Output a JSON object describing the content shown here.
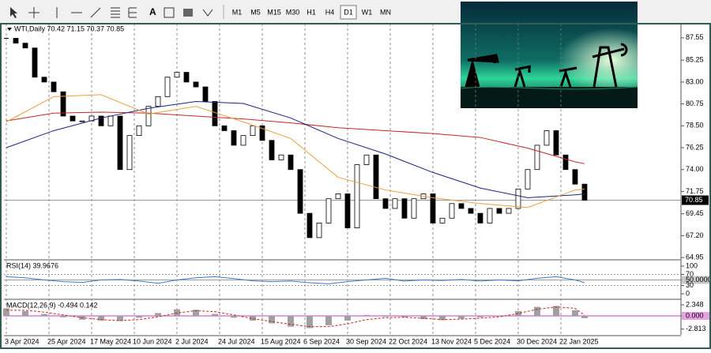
{
  "toolbar": {
    "timeframes": [
      "M1",
      "M5",
      "M15",
      "M30",
      "H1",
      "H4",
      "D1",
      "W1",
      "MN"
    ],
    "active": "D1"
  },
  "chart_data": [
    {
      "type": "candlestick",
      "title": "WTI,Daily 70.42 71.15 70.37 70.85",
      "values": [
        87.5,
        87,
        86.5,
        83.5,
        83,
        82,
        79.5,
        79,
        79,
        79.5,
        78.5,
        79.5,
        74,
        77.5,
        78.5,
        80.5,
        81.5,
        83.5,
        84,
        83,
        82.5,
        81,
        78.5,
        78,
        76.5,
        77.5,
        78.5,
        77,
        75,
        75.5,
        74,
        69.5,
        67,
        68.5,
        71,
        71.5,
        68,
        74.5,
        75.5,
        71,
        70,
        71,
        69,
        71,
        71.5,
        68.5,
        69,
        70.5,
        70,
        69.5,
        68.5,
        70,
        69.5,
        70,
        72,
        74,
        76.5,
        78,
        75.5,
        74,
        72.5,
        70.85
      ],
      "up_color": "#ffffff",
      "down_color": "#000000",
      "series": [
        {
          "color": "#c62828",
          "x": [
            0,
            5,
            10,
            15,
            20,
            25,
            30,
            35,
            40,
            45,
            50,
            55,
            60,
            61
          ],
          "values": [
            79,
            79.8,
            79.9,
            79.8,
            79.5,
            79.2,
            78.8,
            78.3,
            78,
            77.7,
            77.3,
            76.2,
            74.8,
            74.6
          ]
        },
        {
          "color": "#1a237e",
          "x": [
            0,
            5,
            10,
            15,
            20,
            25,
            30,
            35,
            40,
            45,
            50,
            55,
            60,
            61
          ],
          "values": [
            76.25,
            78,
            79.3,
            80.3,
            81,
            80.8,
            79.3,
            77.2,
            75.6,
            73.7,
            72.1,
            71.1,
            71.4,
            71.5
          ]
        },
        {
          "color": "#e8a040",
          "x": [
            0,
            5,
            10,
            15,
            20,
            25,
            30,
            35,
            40,
            45,
            50,
            55,
            60,
            61
          ],
          "values": [
            78.9,
            81.5,
            81.7,
            79.7,
            80.5,
            78.9,
            77.2,
            73.2,
            71.9,
            71.1,
            70.5,
            70.1,
            71.9,
            72
          ]
        }
      ],
      "xlim": [
        -0.25,
        71.17
      ],
      "xticks": [
        {
          "value": 0,
          "label": "3 Apr 2024"
        },
        {
          "value": 4.5,
          "label": "25 Apr 2024"
        },
        {
          "value": 9,
          "label": "17 May 2024"
        },
        {
          "value": 13.5,
          "label": "10 Jun 2024"
        },
        {
          "value": 18,
          "label": "2 Jul 2024"
        },
        {
          "value": 22.5,
          "label": "24 Jul 2024"
        },
        {
          "value": 27,
          "label": "15 Aug 2024"
        },
        {
          "value": 31.5,
          "label": "6 Sep 2024"
        },
        {
          "value": 36,
          "label": "30 Sep 2024"
        },
        {
          "value": 40.5,
          "label": "22 Oct 2024"
        },
        {
          "value": 45,
          "label": "13 Nov 2024"
        },
        {
          "value": 49.5,
          "label": "5 Dec 2024"
        },
        {
          "value": 54,
          "label": "30 Dec 2024"
        },
        {
          "value": 58.5,
          "label": "22 Jan 2025"
        }
      ],
      "ylim": [
        64.8,
        89.0
      ],
      "yticks": [
        87.55,
        85.25,
        {
          "value": 83,
          "label": "83.00"
        },
        80.75,
        {
          "value": 78.5,
          "label": "78.50"
        },
        76.25,
        {
          "value": 74,
          "label": "74.00"
        },
        71.75,
        69.45,
        {
          "value": 67.2,
          "label": "67.20"
        },
        64.95
      ]
    },
    {
      "type": "line",
      "title": "RSI(14) 39.9676",
      "x": [
        0,
        2,
        4,
        6,
        8,
        10,
        12,
        14,
        16,
        18,
        20,
        22,
        24,
        26,
        28,
        30,
        32,
        34,
        36,
        38,
        40,
        42,
        44,
        46,
        48,
        50,
        52,
        54,
        56,
        58,
        60,
        61
      ],
      "values": [
        62,
        58,
        50,
        44,
        41,
        50,
        52,
        46,
        38,
        50,
        58,
        62,
        55,
        47,
        44,
        46,
        40,
        36,
        44,
        50,
        56,
        46,
        50,
        48,
        52,
        46,
        50,
        47,
        56,
        62,
        50,
        39.9676
      ],
      "color": "#3b78c8",
      "ylim": [
        -17,
        120
      ],
      "levels": [
        70,
        30
      ],
      "yticks": [
        100,
        70,
        {
          "value": 50,
          "label": "50.0000"
        },
        30,
        0
      ],
      "highlighted_ytick": 2
    },
    {
      "type": "macd",
      "title": "MACD(12,26,9) -0.494 0.142",
      "x": [
        0,
        2,
        4,
        6,
        8,
        10,
        12,
        14,
        16,
        18,
        20,
        22,
        24,
        26,
        28,
        30,
        32,
        34,
        36,
        38,
        40,
        42,
        44,
        46,
        48,
        50,
        52,
        54,
        56,
        58,
        60,
        61
      ],
      "values": [
        1.6,
        1.0,
        0.4,
        -0.3,
        -0.8,
        -1.0,
        -1.1,
        -0.4,
        0.6,
        1.4,
        1.3,
        0.4,
        -0.4,
        -1.0,
        -1.6,
        -2.3,
        -2.6,
        -2.0,
        -1.0,
        0.2,
        -0.2,
        -0.3,
        -0.7,
        -0.9,
        -0.6,
        -0.3,
        0.1,
        1.0,
        1.9,
        2.1,
        1.2,
        -0.494
      ],
      "signal": [
        1.2,
        1.2,
        0.8,
        0.2,
        -0.4,
        -0.8,
        -1.0,
        -0.8,
        -0.2,
        0.6,
        1.1,
        0.9,
        0.2,
        -0.6,
        -1.2,
        -1.8,
        -2.3,
        -2.3,
        -1.7,
        -0.8,
        -0.4,
        -0.3,
        -0.5,
        -0.8,
        -0.7,
        -0.5,
        -0.2,
        0.5,
        1.4,
        1.9,
        1.6,
        0.142
      ],
      "color": "#a0a0a0",
      "signal_color": "#c62828",
      "ylim": [
        -4.03,
        3.35
      ],
      "yticks": [
        2.348,
        {
          "value": 0,
          "label": "0.000"
        },
        -2.813
      ],
      "highlighted_ytick": 1
    }
  ]
}
